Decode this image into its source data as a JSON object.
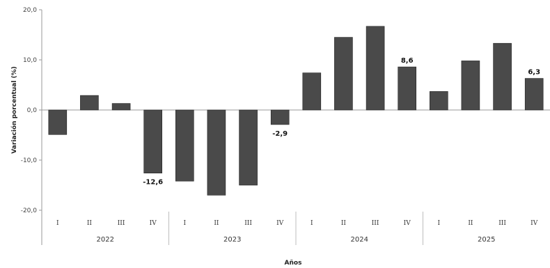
{
  "chart_data": {
    "type": "bar",
    "xlabel": "Años",
    "ylabel": "Variación porcentual  (%)",
    "ylim": [
      -20,
      20
    ],
    "y_ticks": [
      "20,0",
      "10,0",
      "0,0",
      "-10,0",
      "-20,0"
    ],
    "y_tick_values": [
      20,
      10,
      0,
      -10,
      -20
    ],
    "grid": false,
    "bar_color": "#4a4a4a",
    "years": [
      "2022",
      "2023",
      "2024",
      "2025"
    ],
    "quarters": [
      "I",
      "II",
      "III",
      "IV"
    ],
    "categories": [
      "2022-I",
      "2022-II",
      "2022-III",
      "2022-IV",
      "2023-I",
      "2023-II",
      "2023-III",
      "2023-IV",
      "2024-I",
      "2024-II",
      "2024-III",
      "2024-IV",
      "2025-I",
      "2025-II",
      "2025-III",
      "2025-IV"
    ],
    "values": [
      -4.9,
      2.9,
      1.3,
      -12.6,
      -14.2,
      -17.0,
      -15.0,
      -2.9,
      7.4,
      14.5,
      16.7,
      8.6,
      3.7,
      9.8,
      13.3,
      6.3
    ],
    "data_labels": [
      {
        "index": 3,
        "text": "-12,6"
      },
      {
        "index": 7,
        "text": "-2,9"
      },
      {
        "index": 11,
        "text": "8,6"
      },
      {
        "index": 15,
        "text": "6,3"
      }
    ]
  }
}
